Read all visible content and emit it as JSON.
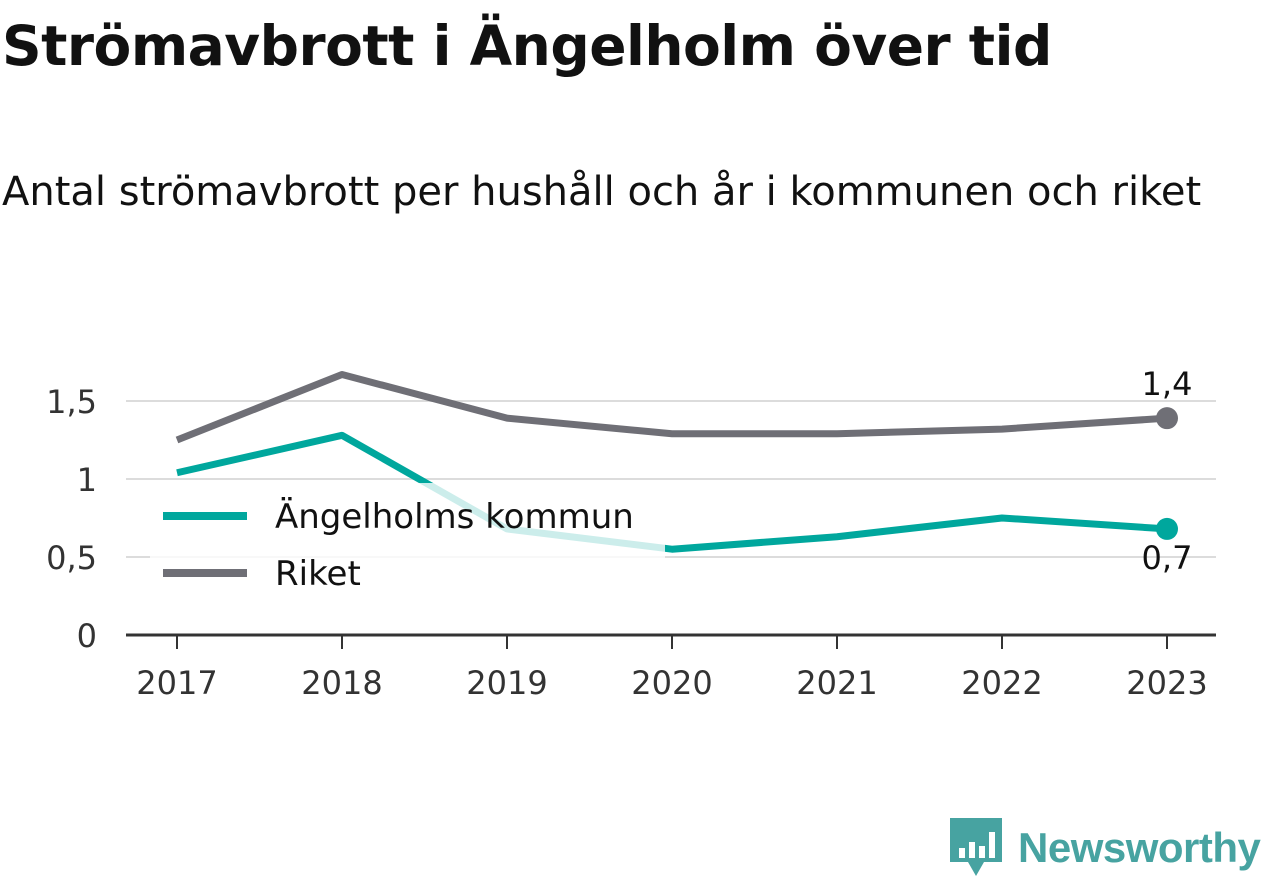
{
  "title": "Strömavbrott i Ängelholm över tid",
  "subtitle": "Antal strömavbrott per hushåll och år i kommunen och riket",
  "brand": "Newsworthy",
  "chart_data": {
    "type": "line",
    "x": [
      "2017",
      "2018",
      "2019",
      "2020",
      "2021",
      "2022",
      "2023"
    ],
    "series": [
      {
        "name": "Ängelholms kommun",
        "color": "#00a79d",
        "values": [
          1.04,
          1.28,
          0.68,
          0.55,
          0.63,
          0.75,
          0.68
        ]
      },
      {
        "name": "Riket",
        "color": "#6f6f76",
        "values": [
          1.25,
          1.67,
          1.39,
          1.29,
          1.29,
          1.32,
          1.39
        ]
      }
    ],
    "yticks": [
      {
        "value": 0,
        "label": "0"
      },
      {
        "value": 0.5,
        "label": "0,5"
      },
      {
        "value": 1,
        "label": "1"
      },
      {
        "value": 1.5,
        "label": "1,5"
      }
    ],
    "ylim": [
      0,
      1.75
    ],
    "end_labels": [
      "0,7",
      "1,4"
    ],
    "grid": true,
    "legend_position": "center-left"
  }
}
